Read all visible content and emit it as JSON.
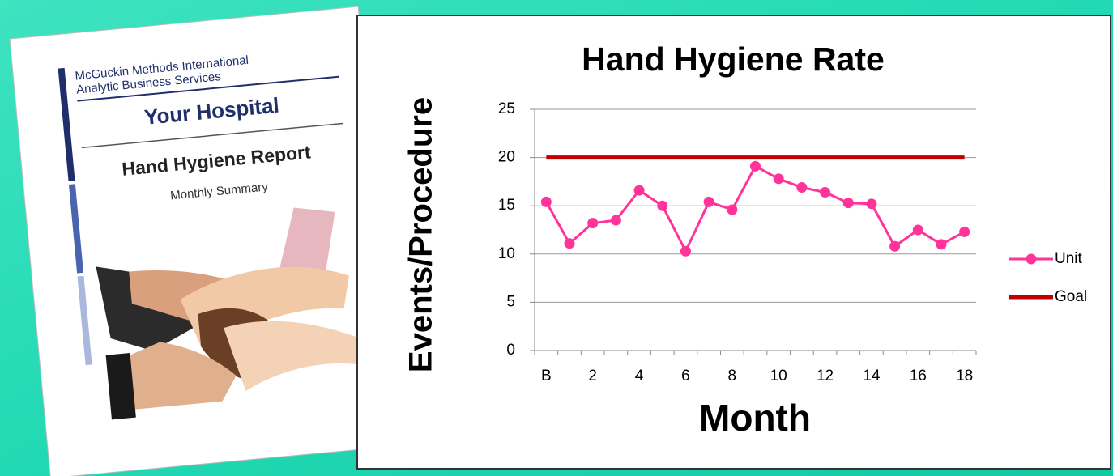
{
  "cover": {
    "company_line1": "McGuckin Methods International",
    "company_line2": "Analytic Business Services",
    "hospital": "Your Hospital",
    "report_title": "Hand Hygiene Report",
    "report_subtitle": "Monthly Summary"
  },
  "chart_data": {
    "type": "line",
    "title": "Hand Hygiene Rate",
    "x_label": "Month",
    "y_label": "Events/Procedure",
    "categories": [
      "B",
      null,
      "2",
      null,
      "4",
      null,
      "6",
      null,
      "8",
      null,
      "10",
      null,
      "12",
      null,
      "14",
      null,
      "16",
      null,
      "18"
    ],
    "series": [
      {
        "name": "Unit",
        "color": "#ff3399",
        "markers": true,
        "values": [
          15.4,
          11.1,
          13.2,
          13.5,
          16.6,
          15.0,
          10.3,
          15.4,
          14.6,
          19.1,
          17.8,
          16.9,
          16.4,
          15.3,
          15.2,
          10.8,
          12.5,
          11.0,
          12.3
        ]
      },
      {
        "name": "Goal",
        "color": "#c00000",
        "markers": false,
        "values": [
          20,
          20,
          20,
          20,
          20,
          20,
          20,
          20,
          20,
          20,
          20,
          20,
          20,
          20,
          20,
          20,
          20,
          20,
          20
        ]
      }
    ],
    "ylim": [
      0,
      25
    ],
    "yticks": [
      0,
      5,
      10,
      15,
      20,
      25
    ],
    "grid": true,
    "legend": "right"
  }
}
